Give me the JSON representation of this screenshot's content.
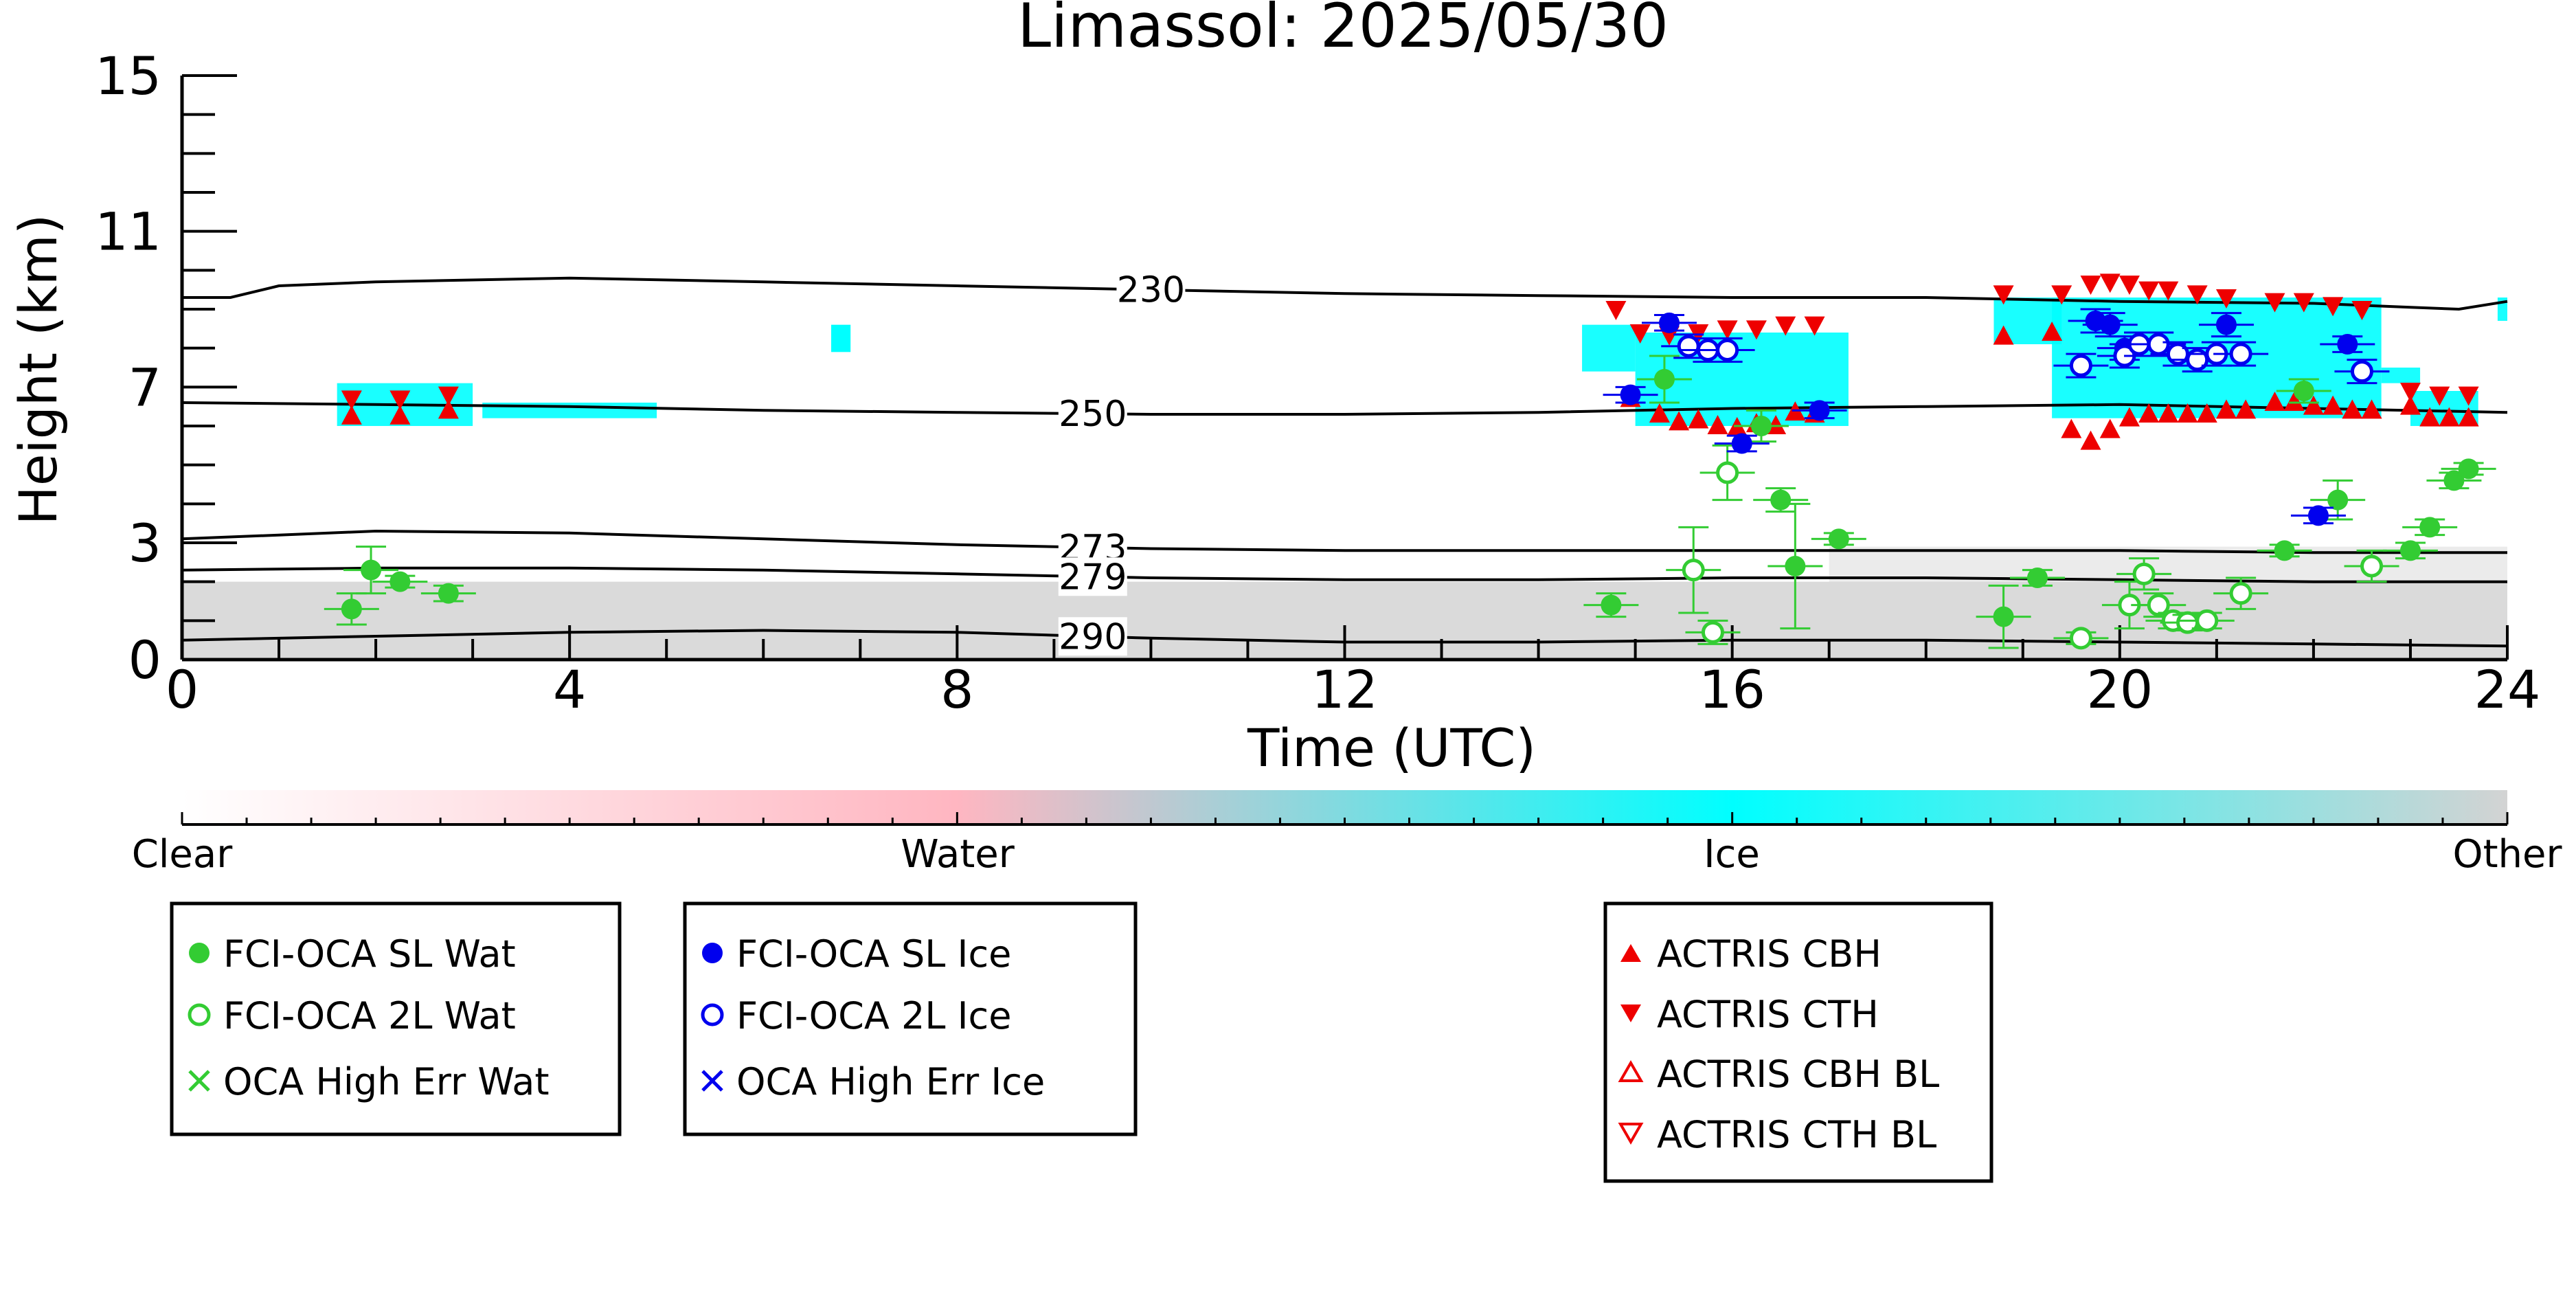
{
  "chart_data": {
    "type": "scatter",
    "title": "Limassol: 2025/05/30",
    "xlabel": "Time (UTC)",
    "ylabel": "Height (km)",
    "xlim": [
      0,
      24
    ],
    "ylim": [
      0,
      15
    ],
    "x_ticks": [
      0,
      4,
      8,
      12,
      16,
      20,
      24
    ],
    "y_ticks": [
      0,
      3,
      7,
      11,
      15
    ],
    "grid": false,
    "isotherms": [
      {
        "label": "230",
        "label_x": 10.0,
        "points": [
          [
            0,
            9.3
          ],
          [
            0.5,
            9.3
          ],
          [
            1,
            9.6
          ],
          [
            2,
            9.7
          ],
          [
            4,
            9.8
          ],
          [
            6,
            9.7
          ],
          [
            8,
            9.6
          ],
          [
            10,
            9.5
          ],
          [
            12,
            9.4
          ],
          [
            14,
            9.35
          ],
          [
            16,
            9.3
          ],
          [
            18,
            9.3
          ],
          [
            20,
            9.2
          ],
          [
            22,
            9.15
          ],
          [
            23,
            9.05
          ],
          [
            23.5,
            9.0
          ],
          [
            24,
            9.2
          ]
        ]
      },
      {
        "label": "250",
        "label_x": 9.4,
        "points": [
          [
            0,
            6.6
          ],
          [
            2,
            6.55
          ],
          [
            4,
            6.5
          ],
          [
            6,
            6.4
          ],
          [
            8,
            6.35
          ],
          [
            10,
            6.3
          ],
          [
            12,
            6.3
          ],
          [
            14,
            6.35
          ],
          [
            16,
            6.45
          ],
          [
            18,
            6.5
          ],
          [
            20,
            6.55
          ],
          [
            22,
            6.45
          ],
          [
            24,
            6.35
          ]
        ]
      },
      {
        "label": "273",
        "label_x": 9.4,
        "points": [
          [
            0,
            3.1
          ],
          [
            1,
            3.2
          ],
          [
            2,
            3.3
          ],
          [
            4,
            3.25
          ],
          [
            6,
            3.1
          ],
          [
            8,
            2.95
          ],
          [
            10,
            2.85
          ],
          [
            12,
            2.8
          ],
          [
            14,
            2.8
          ],
          [
            16,
            2.8
          ],
          [
            18,
            2.8
          ],
          [
            20,
            2.8
          ],
          [
            22,
            2.75
          ],
          [
            24,
            2.75
          ]
        ]
      },
      {
        "label": "279",
        "label_x": 9.4,
        "points": [
          [
            0,
            2.3
          ],
          [
            2,
            2.35
          ],
          [
            4,
            2.35
          ],
          [
            6,
            2.3
          ],
          [
            8,
            2.2
          ],
          [
            10,
            2.1
          ],
          [
            12,
            2.05
          ],
          [
            14,
            2.05
          ],
          [
            16,
            2.1
          ],
          [
            18,
            2.1
          ],
          [
            20,
            2.05
          ],
          [
            22,
            2.0
          ],
          [
            24,
            2.0
          ]
        ]
      },
      {
        "label": "290",
        "label_x": 9.4,
        "points": [
          [
            0,
            0.5
          ],
          [
            2,
            0.6
          ],
          [
            4,
            0.7
          ],
          [
            6,
            0.75
          ],
          [
            8,
            0.7
          ],
          [
            10,
            0.55
          ],
          [
            12,
            0.45
          ],
          [
            14,
            0.45
          ],
          [
            16,
            0.5
          ],
          [
            18,
            0.5
          ],
          [
            20,
            0.45
          ],
          [
            22,
            0.4
          ],
          [
            24,
            0.35
          ]
        ]
      }
    ],
    "classification_colorbar": {
      "labels": [
        "Clear",
        "Water",
        "Ice",
        "Other"
      ],
      "colors": {
        "clear": "#ffffff",
        "water": "#ffb6c1",
        "ice": "#00ffff",
        "other": "#d3d3d3"
      }
    },
    "series": [
      {
        "name": "FCI-OCA SL Wat",
        "color": "#33cc33",
        "marker": "filled-circle",
        "points": [
          [
            1.75,
            1.3,
            0.4
          ],
          [
            1.95,
            2.3,
            0.6
          ],
          [
            2.25,
            2.0,
            0.15
          ],
          [
            2.75,
            1.7,
            0.2
          ],
          [
            14.75,
            1.4,
            0.3
          ],
          [
            15.3,
            7.2,
            0.6
          ],
          [
            16.3,
            6.0,
            0.4
          ],
          [
            16.5,
            4.1,
            0.3
          ],
          [
            16.65,
            2.4,
            1.6
          ],
          [
            17.1,
            3.1,
            0.15
          ],
          [
            18.8,
            1.1,
            0.8
          ],
          [
            19.15,
            2.1,
            0.2
          ],
          [
            21.7,
            2.8,
            0.15
          ],
          [
            21.9,
            6.9,
            0.3
          ],
          [
            22.25,
            4.1,
            0.5
          ],
          [
            23.0,
            2.8,
            0.2
          ],
          [
            23.2,
            3.4,
            0.2
          ],
          [
            23.45,
            4.6,
            0.2
          ],
          [
            23.6,
            4.9,
            0.15
          ]
        ]
      },
      {
        "name": "FCI-OCA 2L Wat",
        "color": "#33cc33",
        "marker": "open-circle",
        "points": [
          [
            15.6,
            2.3,
            1.1
          ],
          [
            15.8,
            0.7,
            0.3
          ],
          [
            15.95,
            4.8,
            0.7
          ],
          [
            19.6,
            0.55,
            0.15
          ],
          [
            20.1,
            1.4,
            0.6
          ],
          [
            20.25,
            2.2,
            0.4
          ],
          [
            20.4,
            1.4,
            0.3
          ],
          [
            20.55,
            1.0,
            0.2
          ],
          [
            20.7,
            0.95,
            0.2
          ],
          [
            20.9,
            1.0,
            0.2
          ],
          [
            21.25,
            1.7,
            0.4
          ],
          [
            22.6,
            2.4,
            0.4
          ]
        ]
      },
      {
        "name": "OCA High Err Wat",
        "color": "#33cc33",
        "marker": "x",
        "points": []
      },
      {
        "name": "FCI-OCA SL Ice",
        "color": "#0000ee",
        "marker": "filled-circle",
        "points": [
          [
            14.95,
            6.8,
            0.2
          ],
          [
            15.35,
            8.65,
            0.2
          ],
          [
            16.1,
            5.55,
            0.2
          ],
          [
            16.9,
            6.4,
            0.2
          ],
          [
            19.75,
            8.7,
            0.3
          ],
          [
            19.9,
            8.6,
            0.3
          ],
          [
            20.05,
            8.0,
            0.3
          ],
          [
            21.1,
            8.6,
            0.3
          ],
          [
            22.05,
            3.7,
            0.2
          ],
          [
            22.35,
            8.1,
            0.2
          ]
        ]
      },
      {
        "name": "FCI-OCA 2L Ice",
        "color": "#0000ee",
        "marker": "open-circle",
        "points": [
          [
            15.55,
            8.05,
            0.3
          ],
          [
            15.75,
            7.95,
            0.3
          ],
          [
            15.95,
            7.95,
            0.3
          ],
          [
            19.6,
            7.55,
            0.3
          ],
          [
            20.05,
            7.8,
            0.3
          ],
          [
            20.2,
            8.1,
            0.3
          ],
          [
            20.4,
            8.1,
            0.3
          ],
          [
            20.6,
            7.85,
            0.3
          ],
          [
            20.8,
            7.7,
            0.3
          ],
          [
            21.0,
            7.85,
            0.3
          ],
          [
            21.25,
            7.85,
            0.3
          ],
          [
            22.5,
            7.4,
            0.3
          ]
        ]
      },
      {
        "name": "OCA High Err Ice",
        "color": "#0000ee",
        "marker": "x",
        "points": []
      },
      {
        "name": "ACTRIS CBH",
        "color": "#ee0000",
        "marker": "triangle-up",
        "points": [
          [
            1.75,
            6.25
          ],
          [
            2.25,
            6.25
          ],
          [
            2.75,
            6.4
          ],
          [
            14.95,
            6.7
          ],
          [
            15.25,
            6.3
          ],
          [
            15.45,
            6.1
          ],
          [
            15.65,
            6.15
          ],
          [
            15.85,
            6.0
          ],
          [
            16.05,
            5.95
          ],
          [
            16.25,
            6.05
          ],
          [
            16.45,
            6.0
          ],
          [
            16.65,
            6.35
          ],
          [
            16.85,
            6.3
          ],
          [
            18.8,
            8.3
          ],
          [
            19.3,
            8.4
          ],
          [
            19.5,
            5.9
          ],
          [
            19.7,
            5.6
          ],
          [
            19.9,
            5.9
          ],
          [
            20.1,
            6.2
          ],
          [
            20.3,
            6.3
          ],
          [
            20.5,
            6.3
          ],
          [
            20.7,
            6.3
          ],
          [
            20.9,
            6.3
          ],
          [
            21.1,
            6.4
          ],
          [
            21.3,
            6.4
          ],
          [
            21.6,
            6.6
          ],
          [
            21.8,
            6.6
          ],
          [
            22.0,
            6.5
          ],
          [
            22.2,
            6.5
          ],
          [
            22.4,
            6.4
          ],
          [
            22.6,
            6.4
          ],
          [
            23.0,
            6.5
          ],
          [
            23.2,
            6.2
          ],
          [
            23.4,
            6.2
          ],
          [
            23.6,
            6.2
          ]
        ]
      },
      {
        "name": "ACTRIS CTH",
        "color": "#ee0000",
        "marker": "triangle-down",
        "points": [
          [
            1.75,
            6.7
          ],
          [
            2.25,
            6.7
          ],
          [
            2.75,
            6.8
          ],
          [
            14.8,
            9.0
          ],
          [
            15.05,
            8.4
          ],
          [
            15.35,
            8.35
          ],
          [
            15.65,
            8.4
          ],
          [
            15.95,
            8.5
          ],
          [
            16.25,
            8.5
          ],
          [
            16.55,
            8.6
          ],
          [
            16.85,
            8.6
          ],
          [
            18.8,
            9.4
          ],
          [
            19.4,
            9.4
          ],
          [
            19.7,
            9.65
          ],
          [
            19.9,
            9.7
          ],
          [
            20.1,
            9.65
          ],
          [
            20.3,
            9.5
          ],
          [
            20.5,
            9.5
          ],
          [
            20.8,
            9.4
          ],
          [
            21.1,
            9.3
          ],
          [
            21.6,
            9.2
          ],
          [
            21.9,
            9.2
          ],
          [
            22.2,
            9.1
          ],
          [
            22.5,
            9.0
          ],
          [
            23.0,
            6.9
          ],
          [
            23.3,
            6.8
          ],
          [
            23.6,
            6.8
          ]
        ]
      },
      {
        "name": "ACTRIS CBH BL",
        "color": "#ee0000",
        "marker": "open-triangle-up",
        "points": []
      },
      {
        "name": "ACTRIS CTH BL",
        "color": "#ee0000",
        "marker": "open-triangle-down",
        "points": []
      }
    ]
  },
  "legends": [
    {
      "items": [
        {
          "label": "FCI-OCA SL Wat",
          "color": "#33cc33",
          "marker": "filled-circle"
        },
        {
          "label": "FCI-OCA 2L Wat",
          "color": "#33cc33",
          "marker": "open-circle"
        },
        {
          "label": "OCA High Err Wat",
          "color": "#33cc33",
          "marker": "x"
        }
      ]
    },
    {
      "items": [
        {
          "label": "FCI-OCA SL Ice",
          "color": "#0000ee",
          "marker": "filled-circle"
        },
        {
          "label": "FCI-OCA 2L Ice",
          "color": "#0000ee",
          "marker": "open-circle"
        },
        {
          "label": "OCA High Err Ice",
          "color": "#0000ee",
          "marker": "x"
        }
      ]
    },
    {
      "items": [
        {
          "label": "ACTRIS CBH",
          "color": "#ee0000",
          "marker": "triangle-up"
        },
        {
          "label": "ACTRIS CTH",
          "color": "#ee0000",
          "marker": "triangle-down"
        },
        {
          "label": "ACTRIS CBH BL",
          "color": "#ee0000",
          "marker": "open-triangle-up"
        },
        {
          "label": "ACTRIS CTH BL",
          "color": "#ee0000",
          "marker": "open-triangle-down"
        }
      ]
    }
  ]
}
